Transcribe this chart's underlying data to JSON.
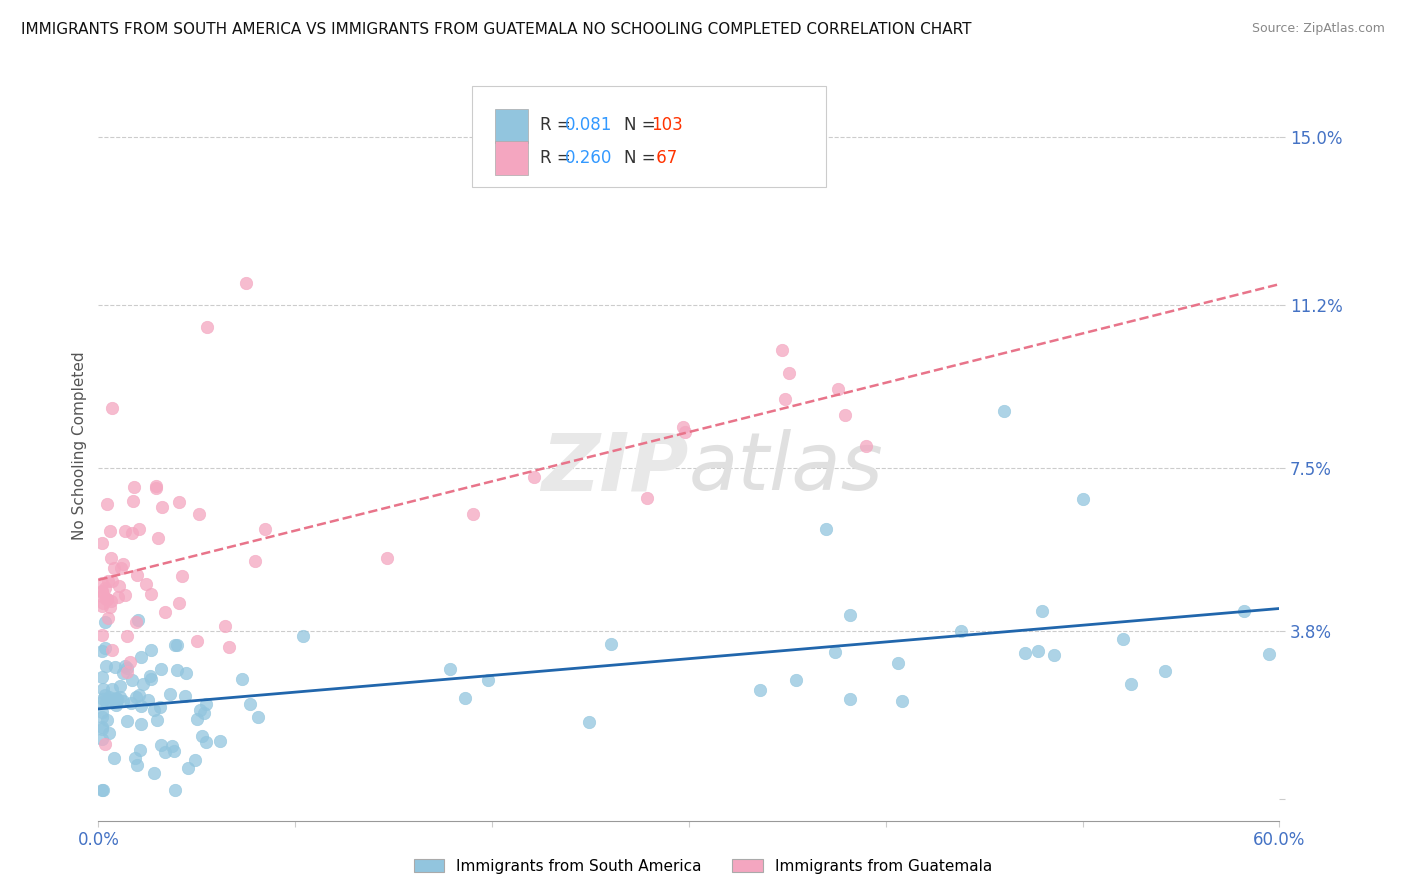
{
  "title": "IMMIGRANTS FROM SOUTH AMERICA VS IMMIGRANTS FROM GUATEMALA NO SCHOOLING COMPLETED CORRELATION CHART",
  "source": "Source: ZipAtlas.com",
  "ylabel": "No Schooling Completed",
  "xlim": [
    0.0,
    0.6
  ],
  "ylim": [
    -0.005,
    0.165
  ],
  "yticks": [
    0.0,
    0.038,
    0.075,
    0.112,
    0.15
  ],
  "ytick_labels": [
    "",
    "3.8%",
    "7.5%",
    "11.2%",
    "15.0%"
  ],
  "series": [
    {
      "name": "Immigrants from South America",
      "color": "#92c5de",
      "line_color": "#2166ac",
      "R": 0.081,
      "N": 103,
      "line_style": "solid"
    },
    {
      "name": "Immigrants from Guatemala",
      "color": "#f4a6c0",
      "line_color": "#e8748a",
      "R": 0.26,
      "N": 67,
      "line_style": "dashed"
    }
  ],
  "legend_R_color": "#3399ff",
  "legend_N_color": "#ff3300",
  "background_color": "#ffffff",
  "grid_color": "#cccccc",
  "watermark_color": "#dddddd",
  "axis_tick_color": "#4472c4",
  "ylabel_color": "#555555",
  "title_fontsize": 11,
  "source_fontsize": 9,
  "tick_fontsize": 12
}
